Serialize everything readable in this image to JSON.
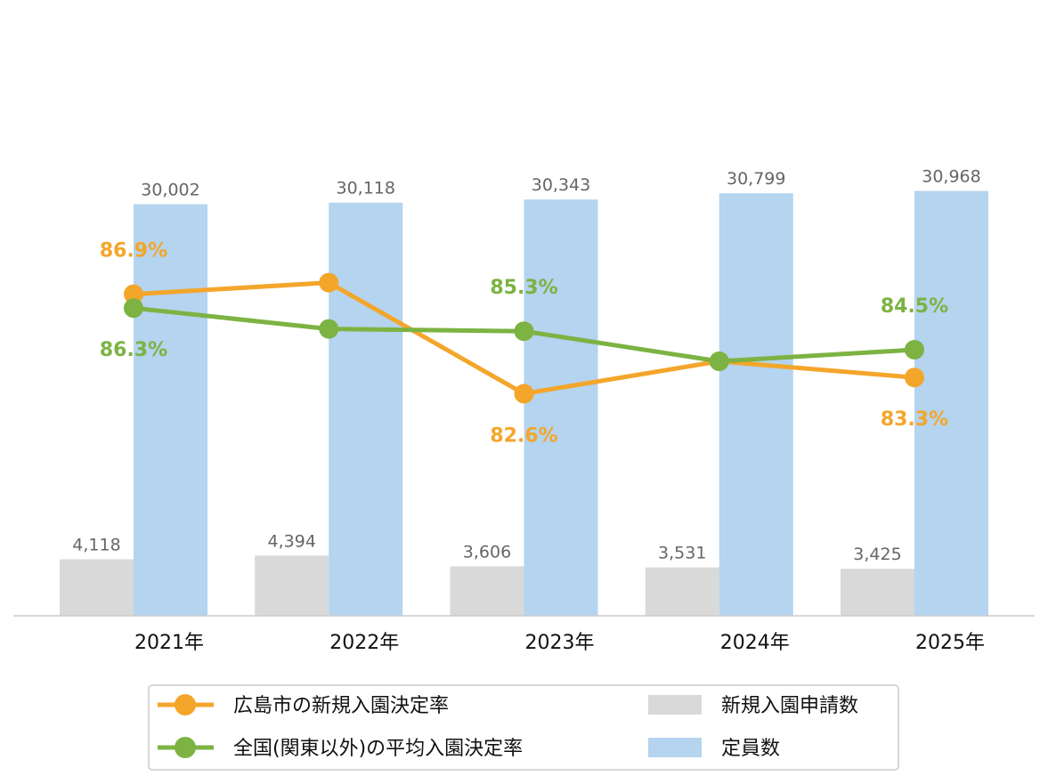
{
  "chart_data": {
    "type": "bar",
    "categories": [
      "2021年",
      "2022年",
      "2023年",
      "2024年",
      "2025年"
    ],
    "series": [
      {
        "name": "新規入園申請数",
        "kind": "bar",
        "axis": "left",
        "color": "#d9d9d9",
        "values": [
          4118,
          4394,
          3606,
          3531,
          3425
        ],
        "labels": [
          "4,118",
          "4,394",
          "3,606",
          "3,531",
          "3,425"
        ]
      },
      {
        "name": "定員数",
        "kind": "bar",
        "axis": "left",
        "color": "#b4d4ef",
        "values": [
          30002,
          30118,
          30343,
          30799,
          30968
        ],
        "labels": [
          "30,002",
          "30,118",
          "30,343",
          "30,799",
          "30,968"
        ]
      },
      {
        "name": "広島市の新規入園決定率",
        "kind": "line",
        "axis": "right",
        "color": "#f4a62a",
        "values": [
          86.9,
          87.4,
          82.6,
          84.0,
          83.3
        ],
        "labels": [
          "86.9%",
          "",
          "82.6%",
          "",
          "83.3%"
        ]
      },
      {
        "name": "全国(関東以外)の平均入園決定率",
        "kind": "line",
        "axis": "right",
        "color": "#7cb342",
        "values": [
          86.3,
          85.4,
          85.3,
          84.0,
          84.5
        ],
        "labels": [
          "86.3%",
          "",
          "85.3%",
          "",
          "84.5%"
        ]
      }
    ],
    "ylim_left": [
      0,
      36000
    ],
    "ylim_right": [
      75,
      95
    ],
    "grid": false,
    "legend_position": "bottom",
    "title": "",
    "xlabel": "",
    "ylabel": ""
  },
  "legend": {
    "items": [
      {
        "label": "広島市の新規入園決定率",
        "icon": "line-marker",
        "color": "#f4a62a"
      },
      {
        "label": "新規入園申請数",
        "icon": "bar-swatch",
        "color": "#d9d9d9"
      },
      {
        "label": "全国(関東以外)の平均入園決定率",
        "icon": "line-marker",
        "color": "#7cb342"
      },
      {
        "label": "定員数",
        "icon": "bar-swatch",
        "color": "#b4d4ef"
      }
    ]
  }
}
